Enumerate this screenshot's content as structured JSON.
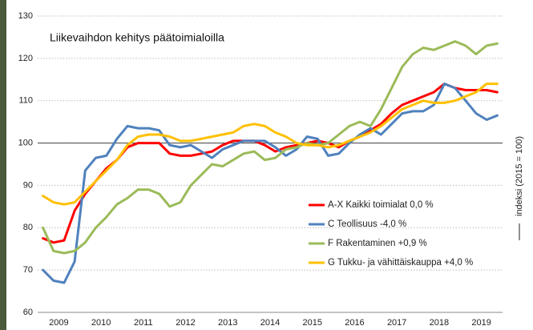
{
  "chart_data": {
    "type": "line",
    "title": "Liikevaihdon kehitys päätoimialoilla",
    "y_label": "indeksi (2015 = 100)",
    "x": [
      2009.125,
      2009.375,
      2009.625,
      2009.875,
      2010.125,
      2010.375,
      2010.625,
      2010.875,
      2011.125,
      2011.375,
      2011.625,
      2011.875,
      2012.125,
      2012.375,
      2012.625,
      2012.875,
      2013.125,
      2013.375,
      2013.625,
      2013.875,
      2014.125,
      2014.375,
      2014.625,
      2014.875,
      2015.125,
      2015.375,
      2015.625,
      2015.875,
      2016.125,
      2016.375,
      2016.625,
      2016.875,
      2017.125,
      2017.375,
      2017.625,
      2017.875,
      2018.125,
      2018.375,
      2018.625,
      2018.875,
      2019.125,
      2019.375,
      2019.625,
      2019.875
    ],
    "series": [
      {
        "name": "A-X Kaikki toimialat 0,0 %",
        "color": "#ff0000",
        "values": [
          77.5,
          76.5,
          77,
          84,
          88,
          91,
          94,
          96,
          99,
          100,
          100,
          100,
          97.5,
          97,
          97,
          97.5,
          98,
          99.5,
          100.5,
          100.5,
          100.5,
          99.5,
          98,
          99,
          99.5,
          100,
          100.5,
          100,
          99,
          100.5,
          101.5,
          103,
          104.5,
          107,
          109,
          110,
          111,
          112,
          114,
          113,
          112.5,
          112.5,
          112.5,
          112
        ]
      },
      {
        "name": "C Teollisuus -4,0 %",
        "color": "#4f81bd",
        "values": [
          70,
          67.5,
          67,
          72,
          93.5,
          96.5,
          97,
          101,
          104,
          103.5,
          103.5,
          103,
          99.5,
          99,
          99.5,
          98,
          96.5,
          98.5,
          99.5,
          100.5,
          100.5,
          100.5,
          99,
          97,
          98.5,
          101.5,
          101,
          97,
          97.5,
          100,
          102,
          103.5,
          102,
          104.5,
          107,
          107.5,
          107.5,
          109,
          114,
          113,
          110,
          107,
          105.5,
          106.5
        ]
      },
      {
        "name": "F Rakentaminen +0,9 %",
        "color": "#9bbb59",
        "values": [
          80,
          74.5,
          74,
          74.5,
          76.5,
          80,
          82.5,
          85.5,
          87,
          89,
          89,
          88,
          85,
          86,
          90,
          92.5,
          95,
          94.5,
          96,
          97.5,
          98,
          96,
          96.5,
          98.5,
          99,
          100,
          99.5,
          100,
          102,
          104,
          105,
          104,
          108,
          113,
          118,
          121,
          122.5,
          122,
          123,
          124,
          123,
          121,
          123,
          123.5
        ]
      },
      {
        "name": "G Tukku- ja vähittäiskauppa +4,0 %",
        "color": "#ffc000",
        "values": [
          87.5,
          86,
          85.5,
          86,
          88.5,
          91,
          93.5,
          96,
          99.5,
          101.5,
          102,
          102,
          101.5,
          100.5,
          100.5,
          101,
          101.5,
          102,
          102.5,
          104,
          104.5,
          104,
          102.5,
          101.5,
          100,
          99.5,
          99.5,
          99,
          99.5,
          100.5,
          101.5,
          102.5,
          104,
          106,
          108,
          109,
          110,
          109.5,
          109.5,
          110,
          111,
          112,
          114,
          114
        ]
      }
    ],
    "xlim": [
      2009,
      2020
    ],
    "xticks": [
      {
        "value": 2009.5,
        "label": "2009"
      },
      {
        "value": 2010.5,
        "label": "2010"
      },
      {
        "value": 2011.5,
        "label": "2011"
      },
      {
        "value": 2012.5,
        "label": "2012"
      },
      {
        "value": 2013.5,
        "label": "2013"
      },
      {
        "value": 2014.5,
        "label": "2014"
      },
      {
        "value": 2015.5,
        "label": "2015"
      },
      {
        "value": 2016.5,
        "label": "2016"
      },
      {
        "value": 2017.5,
        "label": "2017"
      },
      {
        "value": 2018.5,
        "label": "2018"
      },
      {
        "value": 2019.5,
        "label": "2019"
      }
    ],
    "ylim": [
      60,
      130
    ],
    "yticks": [
      60,
      70,
      80,
      90,
      100,
      110,
      120,
      130
    ],
    "reference_line": 100,
    "grid": true,
    "legend": "lower right"
  }
}
